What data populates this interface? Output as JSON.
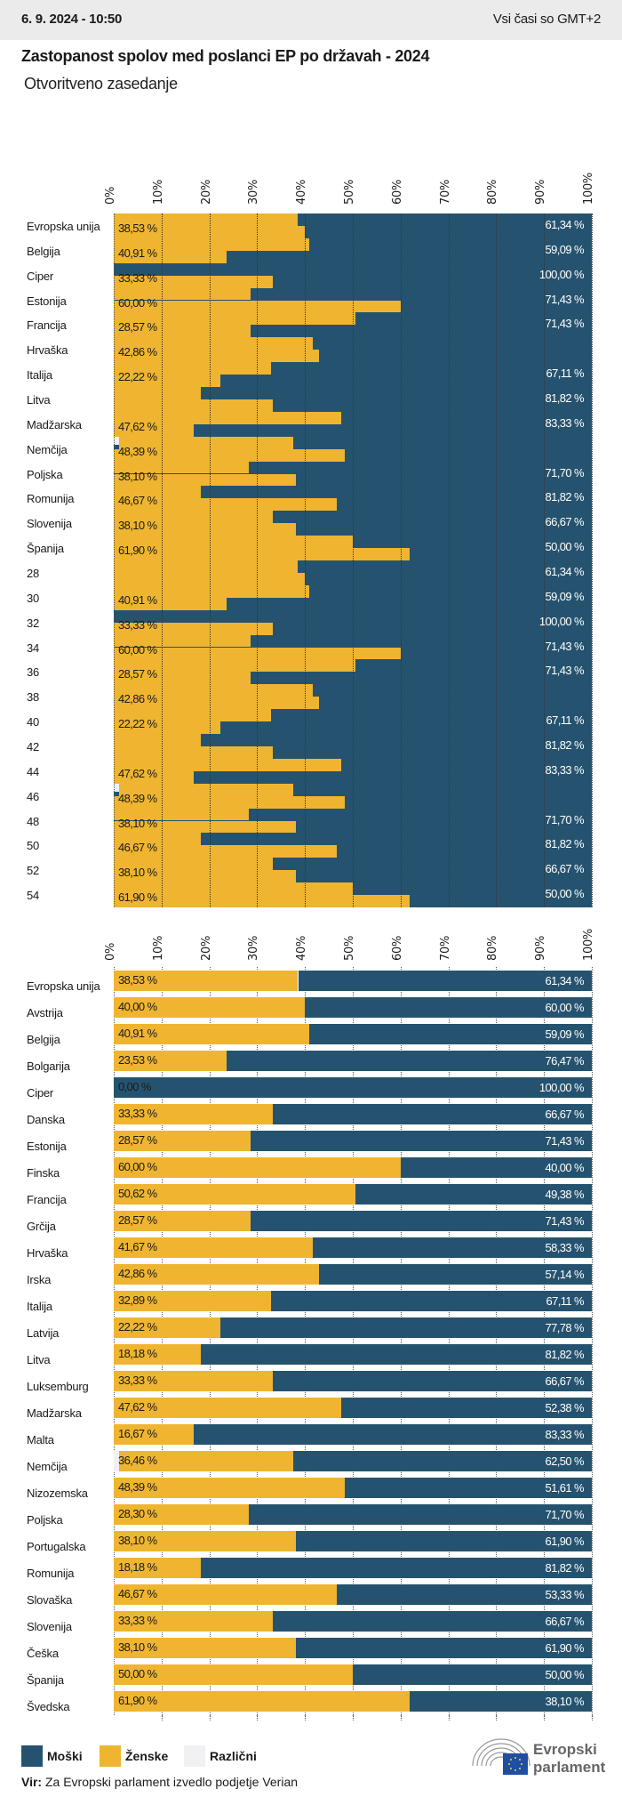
{
  "header": {
    "date": "6. 9. 2024 - 10:50",
    "timezone": "Vsi časi so GMT+2"
  },
  "title": "Zastopanost spolov med poslanci EP po državah - 2024",
  "subtitle": "Otvoritveno zasedanje",
  "colors": {
    "male": "#25536f",
    "female": "#efb531",
    "other": "#f1f1f3"
  },
  "chart_data": [
    {
      "type": "bar",
      "stacked": true,
      "orientation": "horizontal",
      "xlim": [
        0,
        100
      ],
      "ticks": [
        "0%",
        "10%",
        "20%",
        "30%",
        "40%",
        "50%",
        "60%",
        "70%",
        "80%",
        "90%",
        "100%"
      ],
      "categories": [
        "Evropska unija",
        "Belgija",
        "Ciper",
        "Estonija",
        "Francija",
        "Hrvaška",
        "Italija",
        "Litva",
        "Madžarska",
        "Nemčija",
        "Poljska",
        "Romunija",
        "Slovenija",
        "Španija",
        "28",
        "30",
        "32",
        "34",
        "36",
        "38",
        "40",
        "42",
        "44",
        "46",
        "48",
        "50",
        "52",
        "54"
      ],
      "female_labels": [
        "38,53 %",
        "40,91 %",
        "33,33 %",
        "60,00 %",
        "28,57 %",
        "42,86 %",
        "22,22 %",
        "",
        "47,62 %",
        "48,39 %",
        "38,10 %",
        "46,67 %",
        "38,10 %",
        "61,90 %",
        "",
        "40,91 %",
        "33,33 %",
        "60,00 %",
        "28,57 %",
        "42,86 %",
        "22,22 %",
        "",
        "47,62 %",
        "48,39 %",
        "38,10 %",
        "46,67 %",
        "38,10 %",
        "61,90 %"
      ],
      "male_labels": [
        "61,34 %",
        "59,09 %",
        "100,00 %",
        "71,43 %",
        "71,43 %",
        "",
        "67,11 %",
        "81,82 %",
        "83,33 %",
        "",
        "71,70 %",
        "81,82 %",
        "66,67 %",
        "50,00 %",
        "61,34 %",
        "59,09 %",
        "100,00 %",
        "71,43 %",
        "71,43 %",
        "",
        "67,11 %",
        "81,82 %",
        "83,33 %",
        "",
        "71,70 %",
        "81,82 %",
        "66,67 %",
        "50,00 %"
      ],
      "female_steps": [
        38.53,
        40.0,
        40.91,
        23.53,
        0,
        33.33,
        28.57,
        60.0,
        50.62,
        28.57,
        41.67,
        42.86,
        32.89,
        22.22,
        18.18,
        33.33,
        47.62,
        16.67,
        36.46,
        48.39,
        28.3,
        38.1,
        18.18,
        46.67,
        33.33,
        38.1,
        50.0,
        61.9
      ],
      "other_steps": [
        0,
        0,
        0,
        0,
        0,
        0,
        0,
        0,
        0,
        0,
        0,
        0,
        0,
        0,
        0,
        0,
        0,
        0,
        1.04,
        0,
        0,
        0,
        0,
        0,
        0,
        0,
        0,
        0
      ]
    },
    {
      "type": "bar",
      "stacked": true,
      "orientation": "horizontal",
      "xlim": [
        0,
        100
      ],
      "ticks": [
        "0%",
        "10%",
        "20%",
        "30%",
        "40%",
        "50%",
        "60%",
        "70%",
        "80%",
        "90%",
        "100%"
      ],
      "series": [
        {
          "name": "Moški"
        },
        {
          "name": "Ženske"
        },
        {
          "name": "Različni"
        }
      ],
      "rows": [
        {
          "country": "Evropska unija",
          "female": 38.53,
          "male": 61.34,
          "other": 0.13,
          "female_label": "38,53 %",
          "male_label": "61,34 %"
        },
        {
          "country": "Avstrija",
          "female": 40.0,
          "male": 60.0,
          "other": 0,
          "female_label": "40,00 %",
          "male_label": "60,00 %"
        },
        {
          "country": "Belgija",
          "female": 40.91,
          "male": 59.09,
          "other": 0,
          "female_label": "40,91 %",
          "male_label": "59,09 %"
        },
        {
          "country": "Bolgarija",
          "female": 23.53,
          "male": 76.47,
          "other": 0,
          "female_label": "23,53 %",
          "male_label": "76,47 %"
        },
        {
          "country": "Ciper",
          "female": 0,
          "male": 100,
          "other": 0,
          "female_label": "0,00 %",
          "male_label": "100,00 %"
        },
        {
          "country": "Danska",
          "female": 33.33,
          "male": 66.67,
          "other": 0,
          "female_label": "33,33 %",
          "male_label": "66,67 %"
        },
        {
          "country": "Estonija",
          "female": 28.57,
          "male": 71.43,
          "other": 0,
          "female_label": "28,57 %",
          "male_label": "71,43 %"
        },
        {
          "country": "Finska",
          "female": 60.0,
          "male": 40.0,
          "other": 0,
          "female_label": "60,00 %",
          "male_label": "40,00 %"
        },
        {
          "country": "Francija",
          "female": 50.62,
          "male": 49.38,
          "other": 0,
          "female_label": "50,62 %",
          "male_label": "49,38 %"
        },
        {
          "country": "Grčija",
          "female": 28.57,
          "male": 71.43,
          "other": 0,
          "female_label": "28,57 %",
          "male_label": "71,43 %"
        },
        {
          "country": "Hrvaška",
          "female": 41.67,
          "male": 58.33,
          "other": 0,
          "female_label": "41,67 %",
          "male_label": "58,33 %"
        },
        {
          "country": "Irska",
          "female": 42.86,
          "male": 57.14,
          "other": 0,
          "female_label": "42,86 %",
          "male_label": "57,14 %"
        },
        {
          "country": "Italija",
          "female": 32.89,
          "male": 67.11,
          "other": 0,
          "female_label": "32,89 %",
          "male_label": "67,11 %"
        },
        {
          "country": "Latvija",
          "female": 22.22,
          "male": 77.78,
          "other": 0,
          "female_label": "22,22 %",
          "male_label": "77,78 %"
        },
        {
          "country": "Litva",
          "female": 18.18,
          "male": 81.82,
          "other": 0,
          "female_label": "18,18 %",
          "male_label": "81,82 %"
        },
        {
          "country": "Luksemburg",
          "female": 33.33,
          "male": 66.67,
          "other": 0,
          "female_label": "33,33 %",
          "male_label": "66,67 %"
        },
        {
          "country": "Madžarska",
          "female": 47.62,
          "male": 52.38,
          "other": 0,
          "female_label": "47,62 %",
          "male_label": "52,38 %"
        },
        {
          "country": "Malta",
          "female": 16.67,
          "male": 83.33,
          "other": 0,
          "female_label": "16,67 %",
          "male_label": "83,33 %"
        },
        {
          "country": "Nemčija",
          "female": 36.46,
          "male": 62.5,
          "other": 1.04,
          "female_label": "36,46 %",
          "male_label": "62,50 %"
        },
        {
          "country": "Nizozemska",
          "female": 48.39,
          "male": 51.61,
          "other": 0,
          "female_label": "48,39 %",
          "male_label": "51,61 %"
        },
        {
          "country": "Poljska",
          "female": 28.3,
          "male": 71.7,
          "other": 0,
          "female_label": "28,30 %",
          "male_label": "71,70 %"
        },
        {
          "country": "Portugalska",
          "female": 38.1,
          "male": 61.9,
          "other": 0,
          "female_label": "38,10 %",
          "male_label": "61,90 %"
        },
        {
          "country": "Romunija",
          "female": 18.18,
          "male": 81.82,
          "other": 0,
          "female_label": "18,18 %",
          "male_label": "81,82 %"
        },
        {
          "country": "Slovaška",
          "female": 46.67,
          "male": 53.33,
          "other": 0,
          "female_label": "46,67 %",
          "male_label": "53,33 %"
        },
        {
          "country": "Slovenija",
          "female": 33.33,
          "male": 66.67,
          "other": 0,
          "female_label": "33,33 %",
          "male_label": "66,67 %"
        },
        {
          "country": "Češka",
          "female": 38.1,
          "male": 61.9,
          "other": 0,
          "female_label": "38,10 %",
          "male_label": "61,90 %"
        },
        {
          "country": "Španija",
          "female": 50.0,
          "male": 50.0,
          "other": 0,
          "female_label": "50,00 %",
          "male_label": "50,00 %"
        },
        {
          "country": "Švedska",
          "female": 61.9,
          "male": 38.1,
          "other": 0,
          "female_label": "61,90 %",
          "male_label": "38,10 %"
        }
      ]
    }
  ],
  "legend": [
    {
      "label": "Moški"
    },
    {
      "label": "Ženske"
    },
    {
      "label": "Različni"
    }
  ],
  "source": {
    "prefix": "Vir:",
    "text": "Za Evropski parlament izvedlo podjetje Verian"
  },
  "logo": {
    "line1": "Evropski",
    "line2": "parlament"
  }
}
